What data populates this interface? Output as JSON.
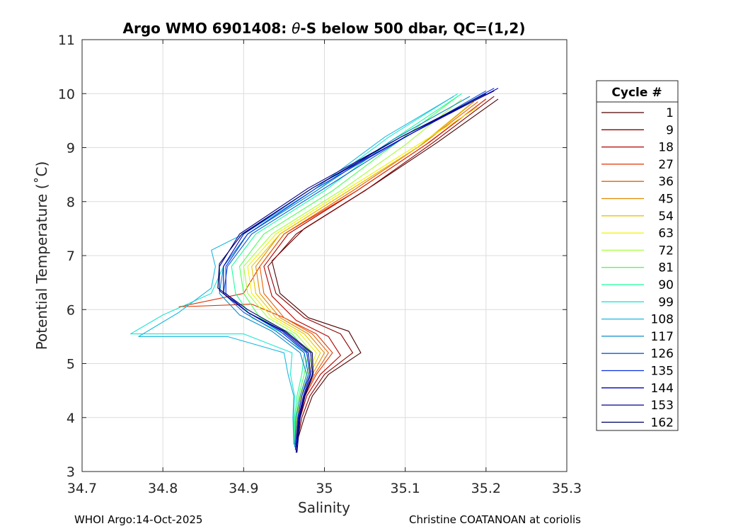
{
  "chart_data": {
    "type": "line",
    "title_prefix": "Argo WMO 6901408: ",
    "title_symbol": "θ",
    "title_suffix": "-S below 500 dbar,  QC=(1,2)",
    "xlabel": "Salinity",
    "ylabel": "Potential Temperature (˚C)",
    "xlim": [
      34.7,
      35.3
    ],
    "ylim": [
      3,
      11
    ],
    "xticks": [
      34.7,
      34.8,
      34.9,
      35,
      35.1,
      35.2,
      35.3
    ],
    "xtick_labels": [
      "34.7",
      "34.8",
      "34.9",
      "35",
      "35.1",
      "35.2",
      "35.3"
    ],
    "yticks": [
      3,
      4,
      5,
      6,
      7,
      8,
      9,
      10,
      11
    ],
    "ytick_labels": [
      "3",
      "4",
      "5",
      "6",
      "7",
      "8",
      "9",
      "10",
      "11"
    ],
    "grid": true,
    "legend_title": "Cycle #",
    "legend_position": "outside-right",
    "legend": [
      {
        "name": "1",
        "color": "#4d0000"
      },
      {
        "name": "9",
        "color": "#8c0000"
      },
      {
        "name": "18",
        "color": "#b30000"
      },
      {
        "name": "27",
        "color": "#e03000"
      },
      {
        "name": "36",
        "color": "#e86000"
      },
      {
        "name": "45",
        "color": "#e08a00"
      },
      {
        "name": "54",
        "color": "#e6c400"
      },
      {
        "name": "63",
        "color": "#f2f200"
      },
      {
        "name": "72",
        "color": "#a6ff3a"
      },
      {
        "name": "81",
        "color": "#4dff5a"
      },
      {
        "name": "90",
        "color": "#1aff9a"
      },
      {
        "name": "99",
        "color": "#1de6d0"
      },
      {
        "name": "108",
        "color": "#1ab8e0"
      },
      {
        "name": "117",
        "color": "#0a8cc8"
      },
      {
        "name": "126",
        "color": "#0a5cd6"
      },
      {
        "name": "135",
        "color": "#0a2ee0"
      },
      {
        "name": "144",
        "color": "#0000c0"
      },
      {
        "name": "153",
        "color": "#00008c"
      },
      {
        "name": "162",
        "color": "#000066"
      }
    ],
    "series": [
      {
        "name": "1",
        "color": "#4d0000",
        "points": [
          [
            34.965,
            3.5
          ],
          [
            34.975,
            4.0
          ],
          [
            34.985,
            4.4
          ],
          [
            35.005,
            4.8
          ],
          [
            35.045,
            5.2
          ],
          [
            35.03,
            5.6
          ],
          [
            34.98,
            5.85
          ],
          [
            34.945,
            6.3
          ],
          [
            34.935,
            6.9
          ],
          [
            34.975,
            7.5
          ],
          [
            35.06,
            8.3
          ],
          [
            35.14,
            9.1
          ],
          [
            35.215,
            9.9
          ]
        ]
      },
      {
        "name": "9",
        "color": "#8c0000",
        "points": [
          [
            34.965,
            3.45
          ],
          [
            34.972,
            4.0
          ],
          [
            34.982,
            4.4
          ],
          [
            35.0,
            4.8
          ],
          [
            35.035,
            5.2
          ],
          [
            35.02,
            5.55
          ],
          [
            34.975,
            5.85
          ],
          [
            34.94,
            6.3
          ],
          [
            34.93,
            6.8
          ],
          [
            34.965,
            7.4
          ],
          [
            35.05,
            8.2
          ],
          [
            35.135,
            9.1
          ],
          [
            35.21,
            9.95
          ]
        ]
      },
      {
        "name": "18",
        "color": "#b30000",
        "points": [
          [
            34.964,
            3.5
          ],
          [
            34.97,
            4.0
          ],
          [
            34.978,
            4.4
          ],
          [
            34.995,
            4.8
          ],
          [
            35.02,
            5.15
          ],
          [
            35.005,
            5.5
          ],
          [
            34.965,
            5.8
          ],
          [
            34.935,
            6.25
          ],
          [
            34.925,
            6.8
          ],
          [
            34.955,
            7.4
          ],
          [
            35.04,
            8.2
          ],
          [
            35.13,
            9.1
          ],
          [
            35.2,
            9.9
          ]
        ]
      },
      {
        "name": "27",
        "color": "#e03000",
        "points": [
          [
            34.963,
            3.5
          ],
          [
            34.97,
            4.0
          ],
          [
            34.976,
            4.4
          ],
          [
            34.99,
            4.8
          ],
          [
            35.01,
            5.2
          ],
          [
            34.99,
            5.55
          ],
          [
            34.95,
            5.85
          ],
          [
            34.91,
            6.1
          ],
          [
            34.82,
            6.05
          ],
          [
            34.9,
            6.3
          ],
          [
            34.92,
            6.8
          ],
          [
            34.95,
            7.4
          ],
          [
            35.04,
            8.2
          ],
          [
            35.125,
            9.05
          ],
          [
            35.2,
            9.9
          ]
        ]
      },
      {
        "name": "36",
        "color": "#e86000",
        "points": [
          [
            34.963,
            3.5
          ],
          [
            34.968,
            4.0
          ],
          [
            34.975,
            4.4
          ],
          [
            34.988,
            4.8
          ],
          [
            35.005,
            5.2
          ],
          [
            34.985,
            5.55
          ],
          [
            34.95,
            5.85
          ],
          [
            34.925,
            6.3
          ],
          [
            34.92,
            6.8
          ],
          [
            34.95,
            7.4
          ],
          [
            35.035,
            8.2
          ],
          [
            35.12,
            9.05
          ],
          [
            35.19,
            9.85
          ]
        ]
      },
      {
        "name": "45",
        "color": "#e08a00",
        "points": [
          [
            34.963,
            3.5
          ],
          [
            34.968,
            4.0
          ],
          [
            34.974,
            4.4
          ],
          [
            34.985,
            4.8
          ],
          [
            35.0,
            5.2
          ],
          [
            34.98,
            5.55
          ],
          [
            34.945,
            5.85
          ],
          [
            34.92,
            6.3
          ],
          [
            34.915,
            6.8
          ],
          [
            34.945,
            7.4
          ],
          [
            35.03,
            8.2
          ],
          [
            35.12,
            9.05
          ],
          [
            35.185,
            9.85
          ]
        ]
      },
      {
        "name": "54",
        "color": "#e6c400",
        "points": [
          [
            34.962,
            3.5
          ],
          [
            34.967,
            4.0
          ],
          [
            34.972,
            4.4
          ],
          [
            34.982,
            4.8
          ],
          [
            34.995,
            5.2
          ],
          [
            34.975,
            5.55
          ],
          [
            34.94,
            5.85
          ],
          [
            34.915,
            6.3
          ],
          [
            34.91,
            6.8
          ],
          [
            34.945,
            7.4
          ],
          [
            35.03,
            8.2
          ],
          [
            35.115,
            9.0
          ],
          [
            35.18,
            9.8
          ]
        ]
      },
      {
        "name": "63",
        "color": "#f2f200",
        "points": [
          [
            34.962,
            3.5
          ],
          [
            34.966,
            4.0
          ],
          [
            34.971,
            4.4
          ],
          [
            34.98,
            4.8
          ],
          [
            34.99,
            5.2
          ],
          [
            34.97,
            5.55
          ],
          [
            34.935,
            5.85
          ],
          [
            34.91,
            6.3
          ],
          [
            34.905,
            6.8
          ],
          [
            34.94,
            7.4
          ],
          [
            35.025,
            8.2
          ],
          [
            35.11,
            9.0
          ],
          [
            35.19,
            9.75
          ]
        ]
      },
      {
        "name": "72",
        "color": "#a6ff3a",
        "points": [
          [
            34.962,
            3.5
          ],
          [
            34.965,
            4.0
          ],
          [
            34.97,
            4.4
          ],
          [
            34.978,
            4.8
          ],
          [
            34.985,
            5.2
          ],
          [
            34.965,
            5.55
          ],
          [
            34.93,
            5.85
          ],
          [
            34.905,
            6.3
          ],
          [
            34.9,
            6.8
          ],
          [
            34.935,
            7.4
          ],
          [
            35.02,
            8.2
          ],
          [
            35.1,
            9.05
          ],
          [
            35.17,
            9.9
          ]
        ]
      },
      {
        "name": "81",
        "color": "#4dff5a",
        "points": [
          [
            34.962,
            3.5
          ],
          [
            34.964,
            4.0
          ],
          [
            34.968,
            4.4
          ],
          [
            34.975,
            4.8
          ],
          [
            34.98,
            5.2
          ],
          [
            34.96,
            5.55
          ],
          [
            34.92,
            5.85
          ],
          [
            34.9,
            6.3
          ],
          [
            34.895,
            6.8
          ],
          [
            34.925,
            7.4
          ],
          [
            35.01,
            8.2
          ],
          [
            35.09,
            9.1
          ],
          [
            35.165,
            9.95
          ]
        ]
      },
      {
        "name": "90",
        "color": "#1aff9a",
        "points": [
          [
            34.962,
            3.5
          ],
          [
            34.963,
            4.0
          ],
          [
            34.966,
            4.4
          ],
          [
            34.972,
            4.8
          ],
          [
            34.975,
            5.2
          ],
          [
            34.95,
            5.55
          ],
          [
            34.91,
            5.85
          ],
          [
            34.89,
            6.3
          ],
          [
            34.885,
            6.8
          ],
          [
            34.915,
            7.4
          ],
          [
            35.0,
            8.2
          ],
          [
            35.085,
            9.15
          ],
          [
            35.17,
            10.0
          ]
        ]
      },
      {
        "name": "99",
        "color": "#1de6d0",
        "points": [
          [
            34.962,
            3.5
          ],
          [
            34.962,
            4.0
          ],
          [
            34.963,
            4.4
          ],
          [
            34.958,
            4.8
          ],
          [
            34.96,
            5.2
          ],
          [
            34.9,
            5.55
          ],
          [
            34.76,
            5.55
          ],
          [
            34.8,
            5.9
          ],
          [
            34.86,
            6.3
          ],
          [
            34.875,
            6.8
          ],
          [
            34.905,
            7.4
          ],
          [
            34.99,
            8.2
          ],
          [
            35.08,
            9.2
          ],
          [
            35.165,
            10.0
          ]
        ]
      },
      {
        "name": "108",
        "color": "#1ab8e0",
        "points": [
          [
            34.962,
            3.5
          ],
          [
            34.961,
            4.0
          ],
          [
            34.962,
            4.4
          ],
          [
            34.955,
            4.8
          ],
          [
            34.95,
            5.2
          ],
          [
            34.88,
            5.5
          ],
          [
            34.77,
            5.5
          ],
          [
            34.82,
            5.95
          ],
          [
            34.86,
            6.4
          ],
          [
            34.865,
            6.8
          ],
          [
            34.86,
            7.1
          ],
          [
            34.9,
            7.4
          ],
          [
            34.985,
            8.2
          ],
          [
            35.075,
            9.2
          ],
          [
            35.16,
            9.95
          ]
        ]
      },
      {
        "name": "117",
        "color": "#0a8cc8",
        "points": [
          [
            34.963,
            3.45
          ],
          [
            34.965,
            4.0
          ],
          [
            34.97,
            4.4
          ],
          [
            34.978,
            4.8
          ],
          [
            34.97,
            5.2
          ],
          [
            34.935,
            5.6
          ],
          [
            34.895,
            5.9
          ],
          [
            34.87,
            6.3
          ],
          [
            34.875,
            6.8
          ],
          [
            34.905,
            7.4
          ],
          [
            34.99,
            8.2
          ],
          [
            35.085,
            9.15
          ],
          [
            35.18,
            9.95
          ]
        ]
      },
      {
        "name": "126",
        "color": "#0a5cd6",
        "points": [
          [
            34.964,
            3.4
          ],
          [
            34.967,
            4.0
          ],
          [
            34.972,
            4.4
          ],
          [
            34.98,
            4.8
          ],
          [
            34.975,
            5.2
          ],
          [
            34.94,
            5.6
          ],
          [
            34.9,
            5.95
          ],
          [
            34.875,
            6.3
          ],
          [
            34.88,
            6.8
          ],
          [
            34.91,
            7.4
          ],
          [
            34.995,
            8.2
          ],
          [
            35.095,
            9.15
          ],
          [
            35.2,
            10.05
          ]
        ]
      },
      {
        "name": "135",
        "color": "#0a2ee0",
        "points": [
          [
            34.964,
            3.4
          ],
          [
            34.967,
            4.0
          ],
          [
            34.972,
            4.4
          ],
          [
            34.982,
            4.8
          ],
          [
            34.978,
            5.2
          ],
          [
            34.945,
            5.6
          ],
          [
            34.905,
            5.95
          ],
          [
            34.878,
            6.3
          ],
          [
            34.878,
            6.8
          ],
          [
            34.905,
            7.4
          ],
          [
            34.99,
            8.25
          ],
          [
            35.1,
            9.2
          ],
          [
            35.21,
            10.1
          ]
        ]
      },
      {
        "name": "144",
        "color": "#0000c0",
        "points": [
          [
            34.965,
            3.35
          ],
          [
            34.968,
            4.0
          ],
          [
            34.974,
            4.4
          ],
          [
            34.983,
            4.8
          ],
          [
            34.98,
            5.2
          ],
          [
            34.948,
            5.6
          ],
          [
            34.905,
            5.95
          ],
          [
            34.875,
            6.3
          ],
          [
            34.875,
            6.8
          ],
          [
            34.9,
            7.4
          ],
          [
            34.985,
            8.25
          ],
          [
            35.1,
            9.2
          ],
          [
            35.215,
            10.1
          ]
        ]
      },
      {
        "name": "153",
        "color": "#00008c",
        "points": [
          [
            34.965,
            3.35
          ],
          [
            34.969,
            4.0
          ],
          [
            34.975,
            4.4
          ],
          [
            34.985,
            4.8
          ],
          [
            34.983,
            5.2
          ],
          [
            34.95,
            5.6
          ],
          [
            34.905,
            5.95
          ],
          [
            34.87,
            6.35
          ],
          [
            34.87,
            6.8
          ],
          [
            34.895,
            7.4
          ],
          [
            34.98,
            8.25
          ],
          [
            35.095,
            9.2
          ],
          [
            35.21,
            10.05
          ]
        ]
      },
      {
        "name": "162",
        "color": "#000066",
        "points": [
          [
            34.966,
            3.35
          ],
          [
            34.97,
            4.0
          ],
          [
            34.976,
            4.4
          ],
          [
            34.986,
            4.8
          ],
          [
            34.985,
            5.2
          ],
          [
            34.952,
            5.6
          ],
          [
            34.905,
            6.0
          ],
          [
            34.868,
            6.4
          ],
          [
            34.87,
            6.85
          ],
          [
            34.898,
            7.4
          ],
          [
            34.985,
            8.25
          ],
          [
            35.095,
            9.2
          ],
          [
            35.2,
            10.0
          ]
        ]
      }
    ]
  },
  "footer": {
    "left": "WHOI Argo:14-Oct-2025",
    "right": "Christine COATANOAN at coriolis"
  }
}
